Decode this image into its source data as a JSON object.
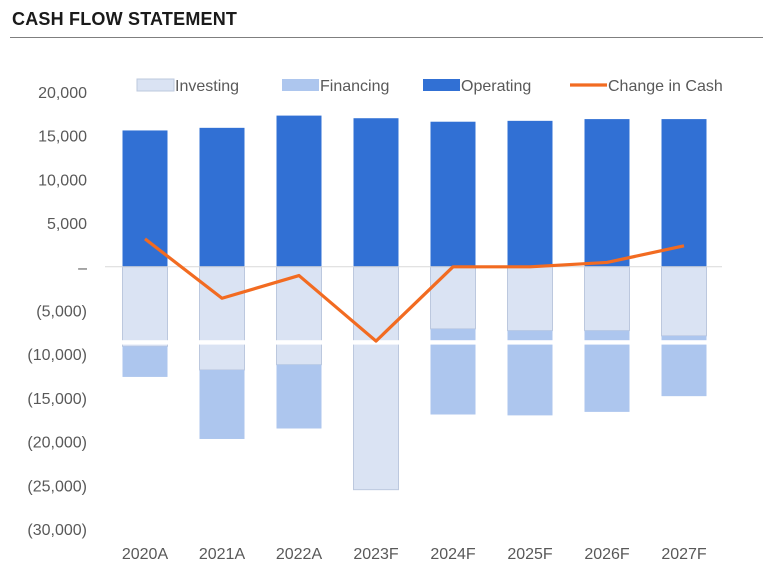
{
  "title": "CASH FLOW STATEMENT",
  "chart_data": {
    "type": "bar",
    "stacked": true,
    "categories": [
      "2020A",
      "2021A",
      "2022A",
      "2023F",
      "2024F",
      "2025F",
      "2026F",
      "2027F"
    ],
    "series": [
      {
        "name": "Investing",
        "kind": "bar",
        "color": "#dae3f3",
        "values": [
          -9100,
          -11800,
          -11200,
          -25500,
          -7100,
          -7300,
          -7300,
          -7900
        ]
      },
      {
        "name": "Financing",
        "kind": "bar",
        "color": "#adc6ee",
        "values": [
          -3500,
          -7900,
          -7300,
          0,
          -9800,
          -9700,
          -9300,
          -6900
        ]
      },
      {
        "name": "Operating",
        "kind": "bar",
        "color": "#3170d4",
        "values": [
          15600,
          15900,
          17300,
          17000,
          16600,
          16700,
          16900,
          16900
        ]
      },
      {
        "name": "Change in Cash",
        "kind": "line",
        "color": "#f26b21",
        "values": [
          3200,
          -3600,
          -1000,
          -8500,
          0,
          0,
          500,
          2400
        ]
      }
    ],
    "ylim": [
      -30000,
      20000
    ],
    "yticks": [
      20000,
      15000,
      10000,
      5000,
      0,
      -5000,
      -10000,
      -15000,
      -20000,
      -25000,
      -30000
    ],
    "ytick_labels": [
      "20,000",
      "15,000",
      "10,000",
      "5,000",
      "–",
      "(5,000)",
      "(10,000)",
      "(15,000)",
      "(20,000)",
      "(25,000)",
      "(30,000)"
    ],
    "axis_break": [
      -8400,
      -8900
    ],
    "grid": false,
    "legend_position": "top"
  }
}
